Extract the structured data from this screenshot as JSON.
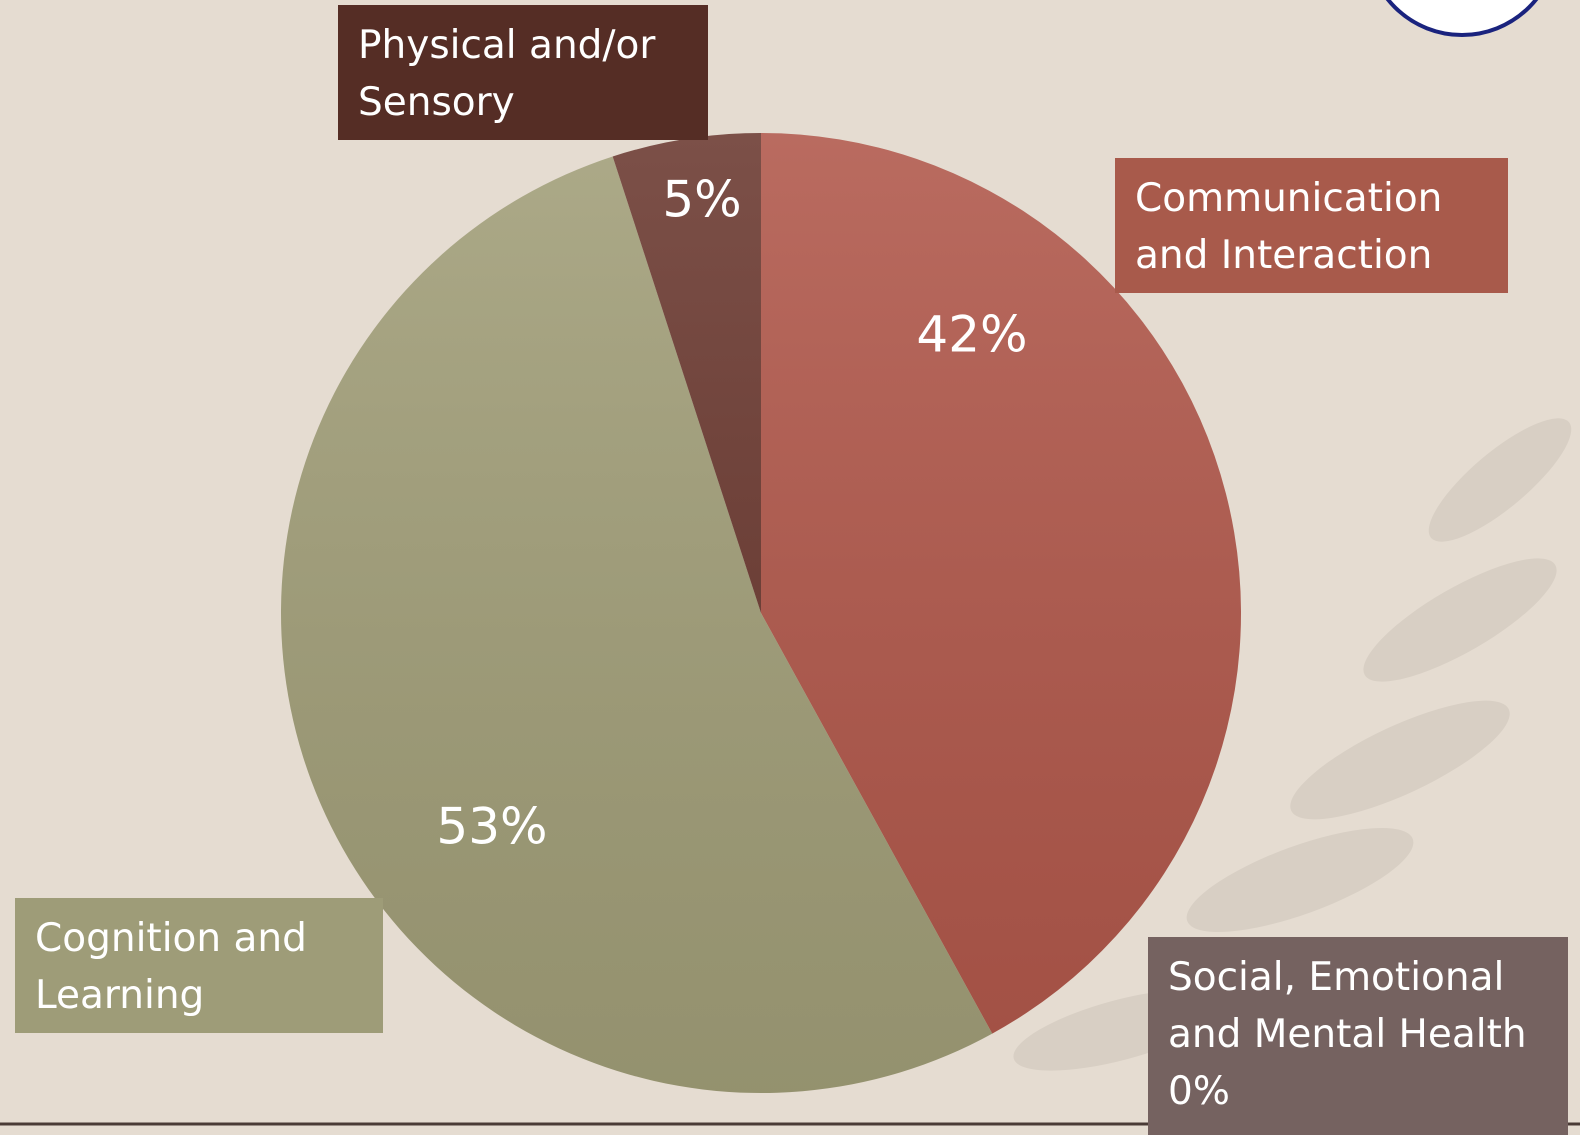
{
  "chart_data": {
    "type": "pie",
    "categories": [
      "Communication and Interaction",
      "Social, Emotional and Mental Health",
      "Cognition and Learning",
      "Physical and/or Sensory"
    ],
    "values": [
      42,
      0,
      53,
      5
    ],
    "value_labels": [
      "42%",
      "0%",
      "53%",
      "5%"
    ],
    "colors": [
      "#b0574a",
      "#756260",
      "#a19e78",
      "#6a382f"
    ]
  }
}
